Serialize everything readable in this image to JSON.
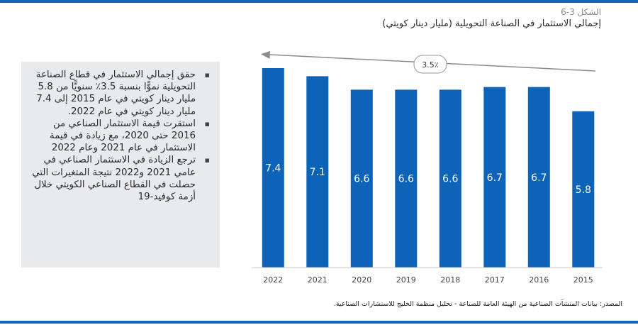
{
  "header": {
    "figure_label": "الشكل 3-6",
    "title": "إجمالي الاستثمار في الصناعة التحويلية (مليار دينار كويتي)"
  },
  "notes": [
    "حقق إجمالي الاستثمار في قطاع الصناعة التحويلية نموًّا بنسبة 3.5٪ سنويًّا من 5.8 مليار دينار كويتي في عام 2015 إلى 7.4 مليار دينار كويتي في عام 2022.",
    "استقرت قيمة الاستثمار الصناعي من 2016 حتى 2020، مع زيادة في قيمة الاستثمار في عام 2021 وعام 2022",
    "ترجع الزيادة في الاستثمار الصناعي في عامي 2021 و2022 نتيجة المتغيرات التي حصلت في القطاع الصناعي الكويتي خلال أزمة كوفيد-19"
  ],
  "chart_data": {
    "type": "bar",
    "categories": [
      "2022",
      "2021",
      "2020",
      "2019",
      "2018",
      "2017",
      "2016",
      "2015"
    ],
    "values": [
      7.4,
      7.1,
      6.6,
      6.6,
      6.6,
      6.7,
      6.7,
      5.8
    ],
    "value_labels": [
      "7.4",
      "7.1",
      "6.6",
      "6.6",
      "6.6",
      "6.7",
      "6.7",
      "5.8"
    ],
    "growth_annotation": "3.5٪",
    "ylim": [
      0,
      7.4
    ],
    "bar_color": "#0d63b8",
    "grid": false
  },
  "footer": {
    "source": "المصدر: بيانات المنشآت الصناعية من الهيئة العامة للصناعة - تحليل منظمة الخليج للاستشارات الصناعية."
  },
  "colors": {
    "accent": "#1565c0",
    "panel": "#e9eaec",
    "arrow": "#8c8c8c"
  }
}
